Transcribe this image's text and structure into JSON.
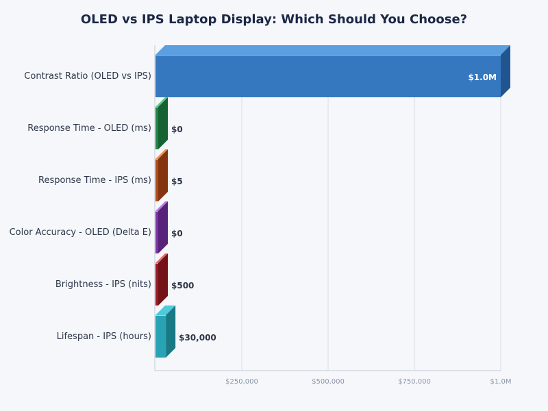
{
  "chart_data": {
    "type": "bar",
    "orientation": "horizontal",
    "style": "3d",
    "title": "OLED vs IPS Laptop Display: Which Should You Choose?",
    "xlabel": "",
    "ylabel": "",
    "xlim": [
      0,
      1000000
    ],
    "grid": true,
    "x_ticks": [
      "$250,000",
      "$500,000",
      "$750,000",
      "$1.0M"
    ],
    "x_tick_values": [
      250000,
      500000,
      750000,
      1000000
    ],
    "categories": [
      "Contrast Ratio (OLED vs IPS)",
      "Response Time - OLED (ms)",
      "Response Time - IPS (ms)",
      "Color Accuracy - OLED (Delta E)",
      "Brightness - IPS (nits)",
      "Lifespan - IPS (hours)"
    ],
    "values": [
      1000000,
      0,
      5,
      0,
      500,
      30000
    ],
    "data_labels": [
      "$1.0M",
      "$0",
      "$5",
      "$0",
      "$500",
      "$30,000"
    ],
    "colors": [
      {
        "front": "#3578c0",
        "top": "#5b9fe0",
        "side": "#21558f"
      },
      {
        "front": "#218546",
        "top": "#5ccb86",
        "side": "#166233"
      },
      {
        "front": "#b04d18",
        "top": "#ee9159",
        "side": "#843510"
      },
      {
        "front": "#7a34a3",
        "top": "#b87ddb",
        "side": "#58217a"
      },
      {
        "front": "#9a1c22",
        "top": "#e3676d",
        "side": "#731318"
      },
      {
        "front": "#27a3b4",
        "top": "#4fcad8",
        "side": "#197985"
      }
    ]
  }
}
